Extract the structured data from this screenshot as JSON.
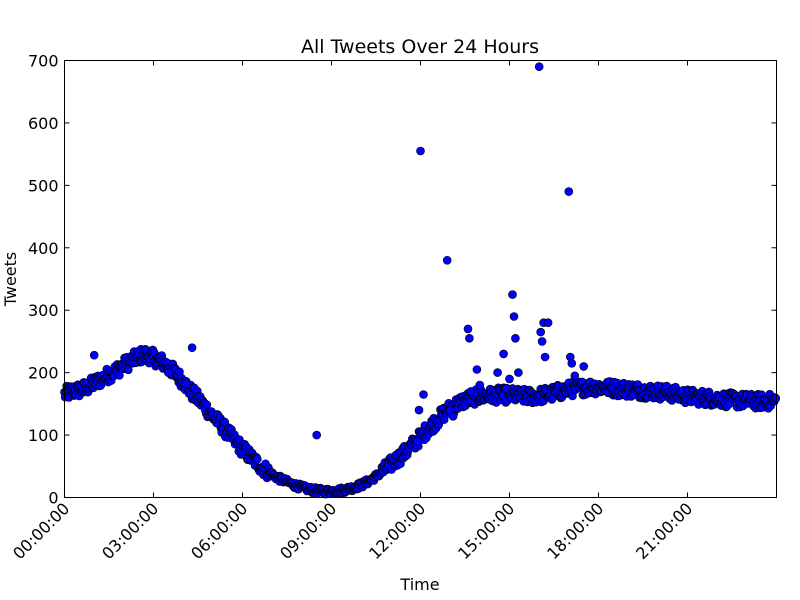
{
  "chart_data": {
    "type": "scatter",
    "title": "All Tweets Over 24 Hours",
    "xlabel": "Time",
    "ylabel": "Tweets",
    "x_unit": "hours",
    "xlim": [
      0,
      24
    ],
    "ylim": [
      0,
      700
    ],
    "grid": false,
    "x_ticks": [
      {
        "value": 0,
        "label": "00:00:00"
      },
      {
        "value": 3,
        "label": "03:00:00"
      },
      {
        "value": 6,
        "label": "06:00:00"
      },
      {
        "value": 9,
        "label": "09:00:00"
      },
      {
        "value": 12,
        "label": "12:00:00"
      },
      {
        "value": 15,
        "label": "15:00:00"
      },
      {
        "value": 18,
        "label": "18:00:00"
      },
      {
        "value": 21,
        "label": "21:00:00"
      }
    ],
    "y_ticks": [
      {
        "value": 0,
        "label": "0"
      },
      {
        "value": 100,
        "label": "100"
      },
      {
        "value": 200,
        "label": "200"
      },
      {
        "value": 300,
        "label": "300"
      },
      {
        "value": 400,
        "label": "400"
      },
      {
        "value": 500,
        "label": "500"
      },
      {
        "value": 600,
        "label": "600"
      },
      {
        "value": 700,
        "label": "700"
      }
    ],
    "marker_color": "#0000ff",
    "marker_edge_color": "#000000",
    "series": [
      {
        "x": [
          0.0,
          0.25,
          0.5,
          0.75,
          1.0,
          1.25,
          1.5,
          1.75,
          2.0,
          2.25,
          2.5,
          2.75,
          3.0,
          3.25,
          3.5,
          3.75,
          4.0,
          4.25,
          4.5,
          4.75,
          5.0,
          5.25,
          5.5,
          5.75,
          6.0,
          6.25,
          6.5,
          6.75,
          7.0,
          7.25,
          7.5,
          7.75,
          8.0,
          8.25,
          8.5,
          8.75,
          9.0,
          9.25,
          9.5,
          9.75,
          10.0,
          10.25,
          10.5,
          10.75,
          11.0,
          11.25,
          11.5,
          11.75,
          12.0,
          12.25,
          12.5,
          12.75,
          13.0,
          13.25,
          13.5,
          13.75,
          14.0,
          14.25,
          14.5,
          14.75,
          15.0,
          15.25,
          15.5,
          15.75,
          16.0,
          16.25,
          16.5,
          16.75,
          17.0,
          17.25,
          17.5,
          17.75,
          18.0,
          18.25,
          18.5,
          18.75,
          19.0,
          19.25,
          19.5,
          19.75,
          20.0,
          20.25,
          20.5,
          20.75,
          21.0,
          21.25,
          21.5,
          21.75,
          22.0,
          22.25,
          22.5,
          22.75,
          23.0,
          23.25,
          23.5,
          23.75,
          24.0,
          8.5,
          11.85,
          11.9,
          11.95,
          12.0,
          12.1,
          12.9,
          13.0,
          13.1,
          13.6,
          13.65,
          13.7,
          13.9,
          14.0,
          14.6,
          14.8,
          14.9,
          15.0,
          15.1,
          15.15,
          15.2,
          15.3,
          16.0,
          16.05,
          16.1,
          16.15,
          16.2,
          16.3,
          17.0,
          17.05,
          17.1,
          17.2,
          17.5,
          4.3,
          1.0,
          4.1,
          3.5
        ],
        "y": [
          165,
          170,
          172,
          176,
          183,
          190,
          197,
          204,
          212,
          219,
          226,
          229,
          224,
          218,
          210,
          198,
          186,
          170,
          158,
          145,
          130,
          118,
          104,
          90,
          78,
          66,
          55,
          45,
          37,
          30,
          25,
          20,
          16,
          13,
          11,
          10,
          10,
          11,
          13,
          16,
          20,
          26,
          34,
          43,
          53,
          63,
          73,
          85,
          97,
          110,
          121,
          133,
          143,
          150,
          156,
          160,
          162,
          163,
          164,
          164,
          164,
          163,
          162,
          162,
          163,
          165,
          167,
          170,
          173,
          175,
          176,
          177,
          177,
          176,
          175,
          174,
          173,
          172,
          171,
          170,
          169,
          168,
          166,
          164,
          162,
          161,
          160,
          159,
          158,
          157,
          156,
          155,
          155,
          154,
          154,
          154,
          155,
          100,
          85,
          90,
          140,
          555,
          165,
          380,
          140,
          130,
          270,
          255,
          170,
          205,
          180,
          200,
          230,
          175,
          190,
          325,
          290,
          255,
          200,
          690,
          265,
          250,
          280,
          225,
          280,
          490,
          225,
          215,
          195,
          210,
          240,
          228,
          182,
          200
        ],
        "noise": 12
      }
    ]
  }
}
